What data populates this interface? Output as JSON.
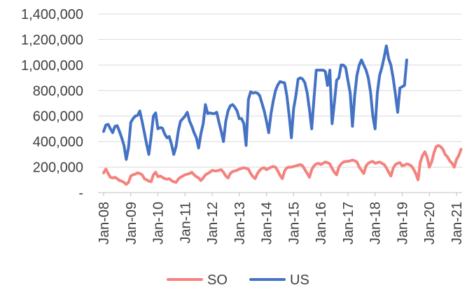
{
  "chart_data": {
    "type": "line",
    "title": "",
    "xlabel": "",
    "ylabel": "",
    "ylim": [
      0,
      1400000
    ],
    "yticks": [
      {
        "value": 0,
        "label": "-"
      },
      {
        "value": 200000,
        "label": "200,000"
      },
      {
        "value": 400000,
        "label": "400,000"
      },
      {
        "value": 600000,
        "label": "600,000"
      },
      {
        "value": 800000,
        "label": "800,000"
      },
      {
        "value": 1000000,
        "label": "1,000,000"
      },
      {
        "value": 1200000,
        "label": "1,200,000"
      },
      {
        "value": 1400000,
        "label": "1,400,000"
      }
    ],
    "xticks": [
      "Jan-08",
      "Jan-09",
      "Jan-10",
      "Jan-11",
      "Jan-12",
      "Jan-13",
      "Jan-14",
      "Jan-15",
      "Jan-16",
      "Jan-17",
      "Jan-18",
      "Jan-19",
      "Jan-20",
      "Jan-21"
    ],
    "x_start": "Jan-08",
    "x_end": "Feb-21",
    "grid": true,
    "legend_position": "bottom",
    "series": [
      {
        "name": "SO",
        "color": "#f4827d",
        "values": [
          155000,
          185000,
          150000,
          120000,
          115000,
          120000,
          110000,
          95000,
          90000,
          80000,
          65000,
          80000,
          130000,
          140000,
          145000,
          155000,
          150000,
          140000,
          110000,
          100000,
          90000,
          85000,
          140000,
          160000,
          125000,
          130000,
          120000,
          110000,
          105000,
          110000,
          95000,
          85000,
          80000,
          105000,
          120000,
          130000,
          140000,
          145000,
          150000,
          160000,
          140000,
          125000,
          115000,
          95000,
          115000,
          140000,
          150000,
          160000,
          175000,
          170000,
          170000,
          175000,
          180000,
          160000,
          130000,
          115000,
          150000,
          165000,
          170000,
          175000,
          185000,
          190000,
          195000,
          190000,
          185000,
          150000,
          125000,
          110000,
          150000,
          175000,
          190000,
          195000,
          180000,
          190000,
          200000,
          205000,
          200000,
          170000,
          135000,
          110000,
          170000,
          195000,
          200000,
          200000,
          205000,
          210000,
          215000,
          220000,
          210000,
          180000,
          150000,
          120000,
          180000,
          210000,
          225000,
          230000,
          220000,
          230000,
          240000,
          235000,
          225000,
          190000,
          160000,
          140000,
          200000,
          225000,
          240000,
          245000,
          245000,
          250000,
          255000,
          250000,
          240000,
          200000,
          175000,
          150000,
          210000,
          230000,
          240000,
          245000,
          230000,
          235000,
          240000,
          230000,
          220000,
          195000,
          160000,
          130000,
          190000,
          220000,
          230000,
          235000,
          210000,
          215000,
          225000,
          220000,
          210000,
          185000,
          150000,
          100000,
          240000,
          290000,
          320000,
          280000,
          200000,
          240000,
          310000,
          360000,
          370000,
          360000,
          340000,
          300000,
          280000,
          250000,
          230000,
          200000,
          260000,
          290000,
          340000
        ]
      },
      {
        "name": "US",
        "color": "#4472c4",
        "values": [
          480000,
          530000,
          535000,
          500000,
          470000,
          520000,
          525000,
          480000,
          430000,
          370000,
          260000,
          350000,
          550000,
          580000,
          600000,
          605000,
          640000,
          560000,
          470000,
          380000,
          300000,
          440000,
          600000,
          625000,
          500000,
          510000,
          505000,
          460000,
          430000,
          440000,
          380000,
          300000,
          360000,
          480000,
          560000,
          580000,
          600000,
          630000,
          560000,
          520000,
          470000,
          430000,
          350000,
          460000,
          540000,
          690000,
          620000,
          625000,
          620000,
          620000,
          630000,
          550000,
          480000,
          400000,
          560000,
          640000,
          680000,
          690000,
          670000,
          640000,
          580000,
          580000,
          540000,
          370000,
          730000,
          790000,
          780000,
          785000,
          780000,
          760000,
          700000,
          640000,
          560000,
          470000,
          620000,
          720000,
          800000,
          845000,
          870000,
          865000,
          860000,
          760000,
          610000,
          430000,
          660000,
          760000,
          890000,
          900000,
          890000,
          860000,
          780000,
          650000,
          500000,
          740000,
          960000,
          960000,
          960000,
          960000,
          950000,
          840000,
          960000,
          540000,
          700000,
          880000,
          900000,
          1000000,
          1000000,
          980000,
          880000,
          780000,
          520000,
          760000,
          920000,
          1000000,
          1040000,
          1000000,
          960000,
          900000,
          790000,
          600000,
          500000,
          780000,
          920000,
          980000,
          1060000,
          1150000,
          1050000,
          1000000,
          900000,
          770000,
          630000,
          820000,
          830000,
          840000,
          1040000
        ]
      }
    ]
  }
}
